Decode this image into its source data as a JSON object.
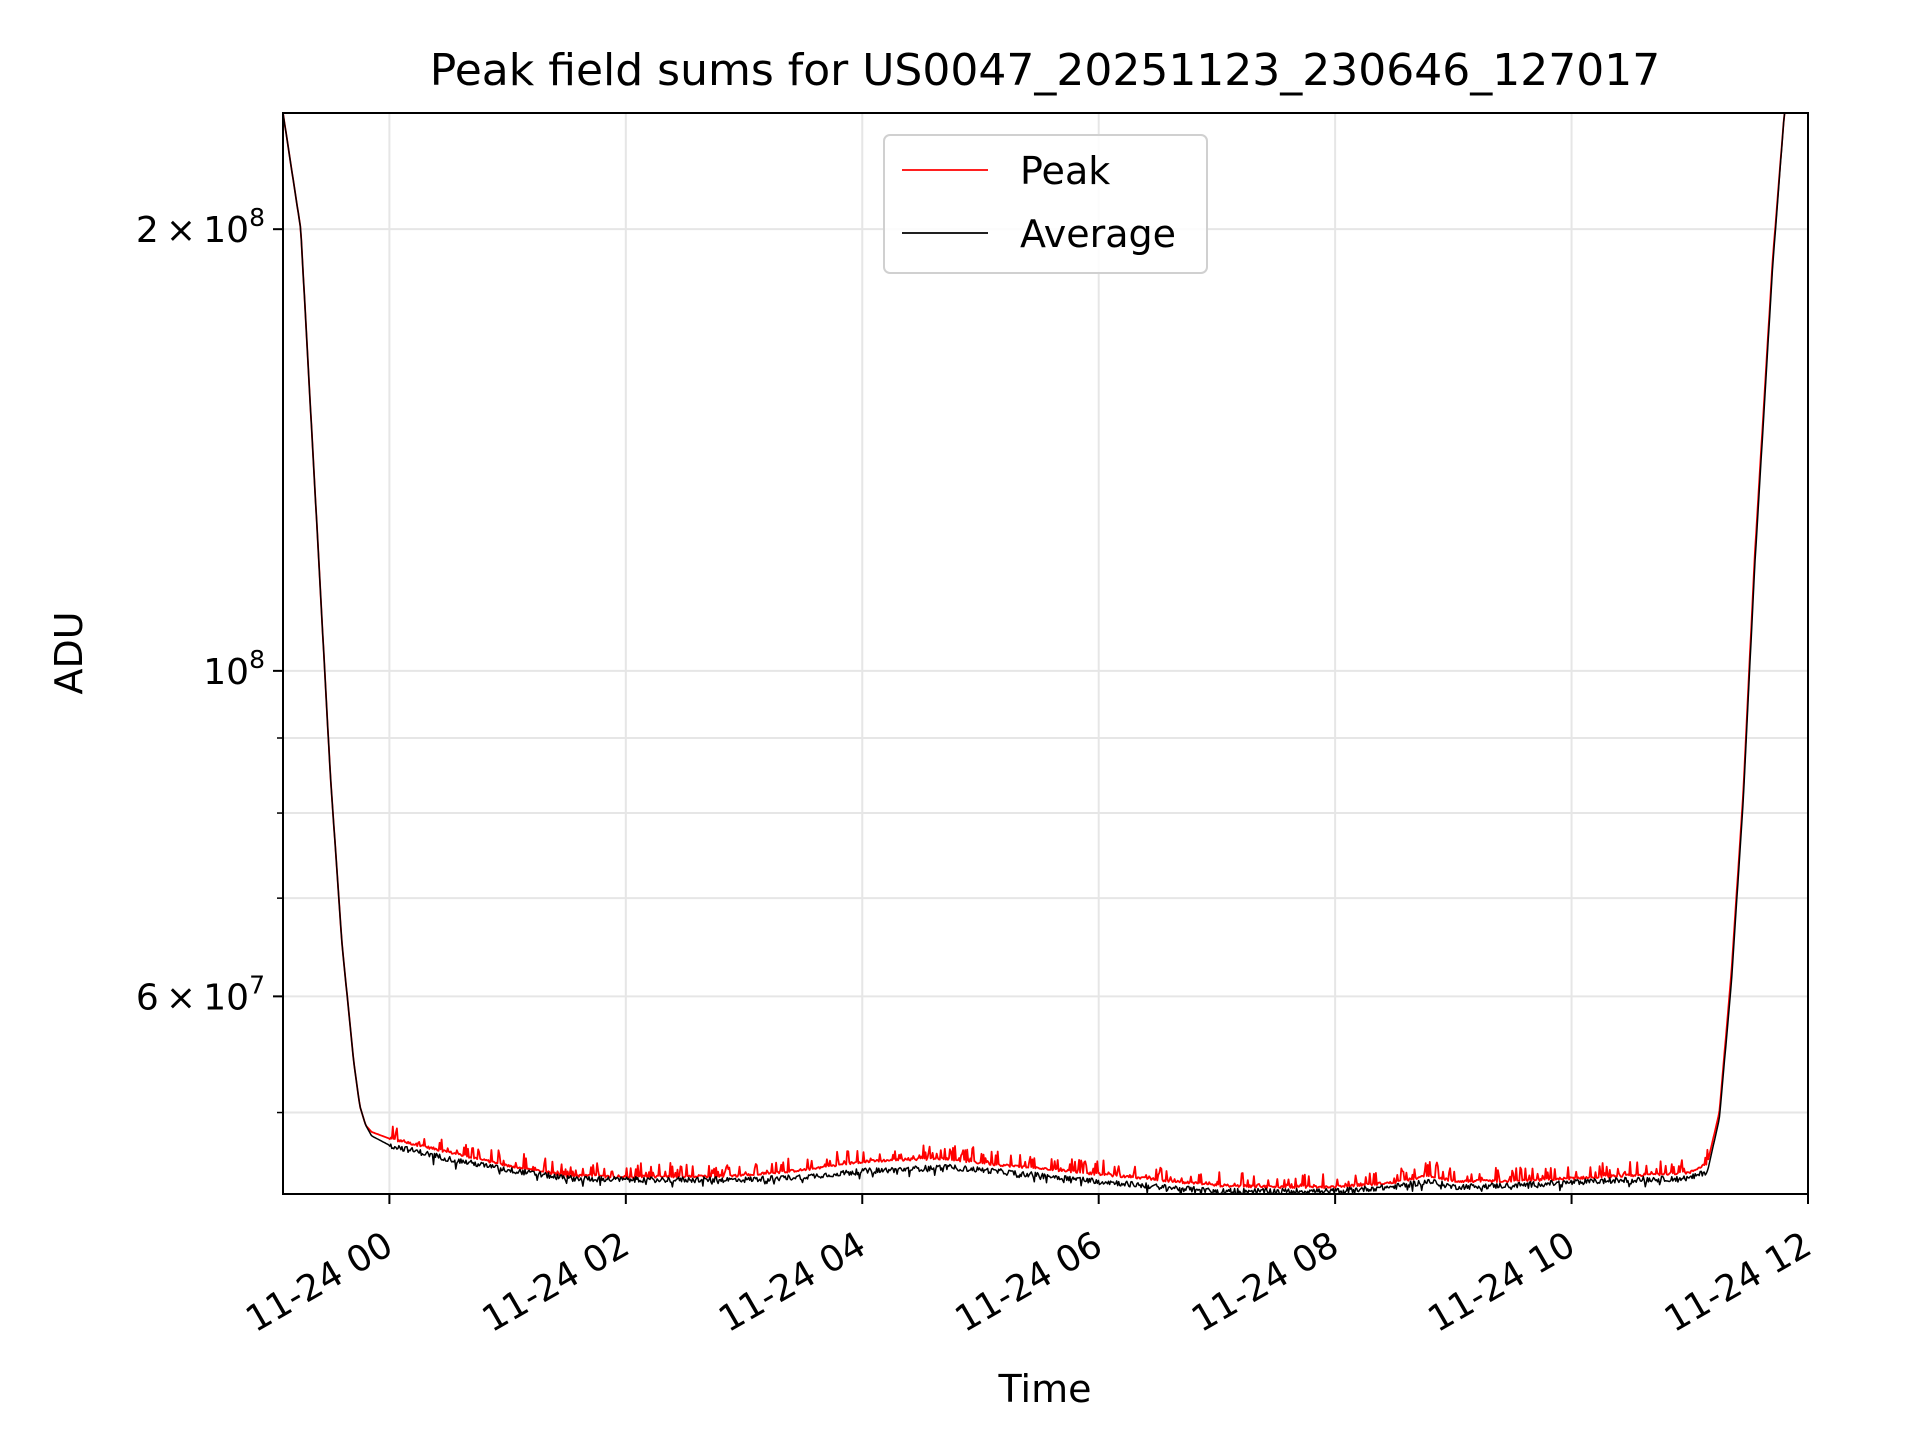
{
  "chart_data": {
    "type": "line",
    "title": "Peak field sums for US0047_20251123_230646_127017",
    "xlabel": "Time",
    "ylabel": "ADU",
    "yscale": "log",
    "xlim_hours": [
      -0.9,
      12.0
    ],
    "ylim": [
      44000000,
      240000000
    ],
    "grid": true,
    "legend_position": "top-center",
    "x_ticks": [
      {
        "hours": 0,
        "label": "11-24 00"
      },
      {
        "hours": 2,
        "label": "11-24 02"
      },
      {
        "hours": 4,
        "label": "11-24 04"
      },
      {
        "hours": 6,
        "label": "11-24 06"
      },
      {
        "hours": 8,
        "label": "11-24 08"
      },
      {
        "hours": 10,
        "label": "11-24 10"
      },
      {
        "hours": 12,
        "label": "11-24 12"
      }
    ],
    "y_major_ticks": [
      {
        "value": 200000000,
        "mantissa": "2",
        "base": "10",
        "exponent": "8"
      },
      {
        "value": 100000000,
        "mantissa": "",
        "base": "10",
        "exponent": "8"
      },
      {
        "value": 60000000,
        "mantissa": "6",
        "base": "10",
        "exponent": "7"
      }
    ],
    "y_minor_ticks": [
      50000000,
      70000000,
      80000000,
      90000000
    ],
    "series": [
      {
        "name": "Peak",
        "color": "#ff0000",
        "x_hours": [
          -0.9,
          -0.75,
          -0.6,
          -0.5,
          -0.4,
          -0.3,
          -0.25,
          -0.2,
          -0.15,
          0.0,
          0.5,
          1.0,
          1.5,
          2.0,
          2.5,
          3.0,
          3.5,
          4.0,
          4.5,
          4.7,
          5.0,
          5.5,
          6.0,
          6.5,
          7.0,
          7.5,
          8.0,
          8.5,
          8.8,
          9.0,
          9.5,
          10.0,
          10.5,
          11.0,
          11.15,
          11.25,
          11.35,
          11.45,
          11.55,
          11.7,
          11.8,
          12.0
        ],
        "values": [
          240000000,
          200000000,
          120000000,
          85000000,
          65000000,
          54000000,
          50500000,
          49000000,
          48500000,
          48000000,
          47000000,
          46000000,
          45300000,
          45200000,
          45200000,
          45300000,
          45700000,
          46300000,
          46500000,
          46500000,
          46200000,
          45800000,
          45400000,
          45000000,
          44600000,
          44500000,
          44500000,
          44800000,
          45300000,
          44900000,
          44900000,
          45100000,
          45300000,
          45500000,
          46200000,
          50000000,
          62000000,
          82000000,
          120000000,
          190000000,
          240000000,
          240000000
        ]
      },
      {
        "name": "Average",
        "color": "#000000",
        "x_hours": [
          -0.9,
          -0.75,
          -0.6,
          -0.5,
          -0.4,
          -0.3,
          -0.25,
          -0.2,
          -0.15,
          0.0,
          0.5,
          1.0,
          1.5,
          2.0,
          2.5,
          3.0,
          3.5,
          4.0,
          4.5,
          4.7,
          5.0,
          5.5,
          6.0,
          6.5,
          7.0,
          7.5,
          8.0,
          8.5,
          8.8,
          9.0,
          9.5,
          10.0,
          10.5,
          11.0,
          11.15,
          11.25,
          11.35,
          11.45,
          11.55,
          11.7,
          11.8,
          12.0
        ],
        "values": [
          240000000,
          200000000,
          120000000,
          85000000,
          65000000,
          54000000,
          50500000,
          49000000,
          48200000,
          47500000,
          46500000,
          45700000,
          45100000,
          45000000,
          45000000,
          45000000,
          45200000,
          45600000,
          45800000,
          45900000,
          45700000,
          45300000,
          44900000,
          44500000,
          44200000,
          44200000,
          44200000,
          44500000,
          44900000,
          44500000,
          44600000,
          44800000,
          45000000,
          45100000,
          45600000,
          49500000,
          61000000,
          81000000,
          118000000,
          188000000,
          240000000,
          240000000
        ]
      }
    ]
  }
}
